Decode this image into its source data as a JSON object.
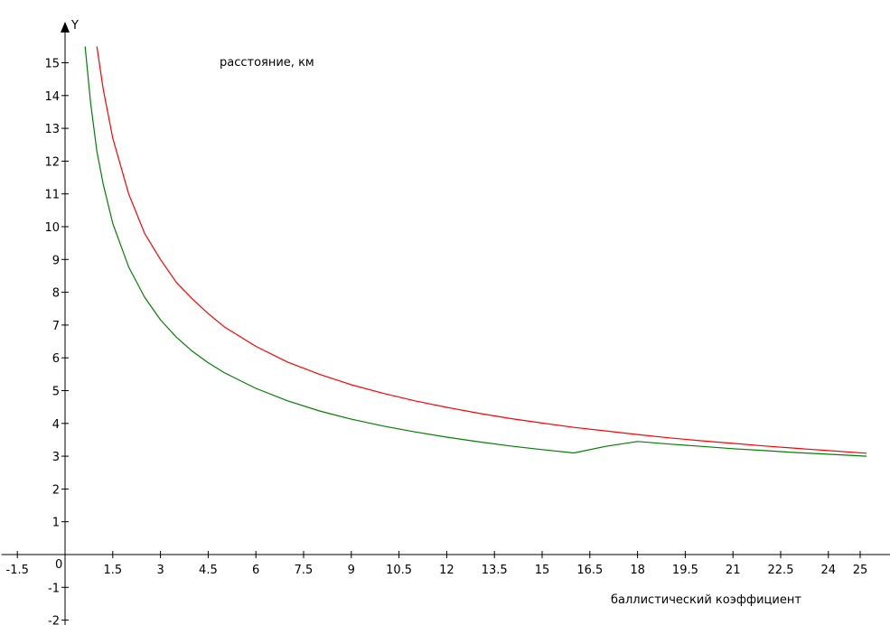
{
  "chart_data": {
    "type": "line",
    "title": "",
    "xlabel": "баллистический коэффициент",
    "ylabel": "расстояние, км",
    "y_axis_name": "Y",
    "origin_label": "0",
    "xlim": [
      -2,
      25.2
    ],
    "ylim": [
      -2.3,
      16.3
    ],
    "grid": false,
    "x_ticks": [
      -1.5,
      1.5,
      3,
      4.5,
      6,
      7.5,
      9,
      10.5,
      12,
      13.5,
      15,
      16.5,
      18,
      19.5,
      21,
      22.5,
      24,
      25
    ],
    "x_tick_labels": [
      "-1.5",
      "1.5",
      "3",
      "4.5",
      "6",
      "7.5",
      "9",
      "10.5",
      "12",
      "13.5",
      "15",
      "16.5",
      "18",
      "19.5",
      "21",
      "22.5",
      "24",
      "25"
    ],
    "y_ticks": [
      -2,
      -1,
      1,
      2,
      3,
      4,
      5,
      6,
      7,
      8,
      9,
      10,
      11,
      12,
      13,
      14,
      15
    ],
    "y_tick_labels": [
      "-2",
      "-1",
      "1",
      "2",
      "3",
      "4",
      "5",
      "6",
      "7",
      "8",
      "9",
      "10",
      "11",
      "12",
      "13",
      "14",
      "15"
    ],
    "x": [
      0.63,
      1.0,
      1.2,
      1.5,
      2,
      2.5,
      3,
      3.5,
      4,
      4.5,
      5,
      6,
      7,
      8,
      9,
      10,
      11,
      12,
      13,
      14,
      15,
      16,
      17,
      18,
      19,
      20,
      21,
      22,
      23,
      24,
      25.2
    ],
    "series": [
      {
        "color": "#ff0000",
        "x": [
          1.0,
          1.2,
          1.5,
          2,
          2.5,
          3,
          3.5,
          4,
          4.5,
          5,
          6,
          7,
          8,
          9,
          10,
          11,
          12,
          13,
          14,
          15,
          16,
          17,
          18,
          19,
          20,
          21,
          22,
          23,
          24,
          25.2
        ],
        "values": [
          15.5,
          14.2,
          12.7,
          11.0,
          9.8,
          9.0,
          8.3,
          7.8,
          7.35,
          6.95,
          6.35,
          5.87,
          5.5,
          5.18,
          4.92,
          4.69,
          4.49,
          4.31,
          4.15,
          4.01,
          3.88,
          3.77,
          3.66,
          3.56,
          3.47,
          3.39,
          3.31,
          3.24,
          3.17,
          3.09
        ]
      },
      {
        "color": "#008000",
        "x": [
          0.63,
          0.8,
          1.0,
          1.2,
          1.5,
          2,
          2.5,
          3,
          3.5,
          4,
          4.5,
          5,
          6,
          7,
          8,
          9,
          10,
          11,
          12,
          13,
          14,
          15,
          16,
          17,
          18,
          19,
          20,
          21,
          22,
          23,
          24,
          25.2
        ],
        "values": [
          15.5,
          13.8,
          12.3,
          11.3,
          10.1,
          8.77,
          7.85,
          7.16,
          6.63,
          6.2,
          5.85,
          5.55,
          5.07,
          4.69,
          4.38,
          4.13,
          3.92,
          3.74,
          3.58,
          3.44,
          3.31,
          3.2,
          3.1,
          3.3,
          3.45,
          3.37,
          3.3,
          3.23,
          3.17,
          3.11,
          3.06,
          3.0
        ]
      }
    ]
  }
}
